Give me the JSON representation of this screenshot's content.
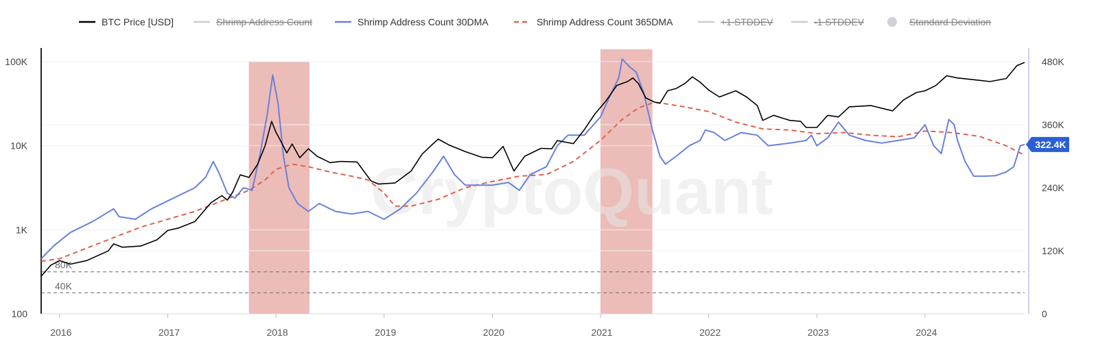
{
  "chart_data": {
    "type": "line",
    "watermark": "CryptoQuant",
    "legend": [
      {
        "id": "btc",
        "label": "BTC Price [USD]",
        "color": "#000000",
        "style": "solid",
        "disabled": false
      },
      {
        "id": "shrimp",
        "label": "Shrimp Address Count",
        "color": "#cccccc",
        "style": "solid",
        "disabled": true
      },
      {
        "id": "dma30",
        "label": "Shrimp Address Count 30DMA",
        "color": "#6a7fdc",
        "style": "solid",
        "disabled": false
      },
      {
        "id": "dma365",
        "label": "Shrimp Address Count 365DMA",
        "color": "#e0604c",
        "style": "dashed",
        "disabled": false
      },
      {
        "id": "plus1",
        "label": "+1 STDDEV",
        "color": "#cccccc",
        "style": "solid",
        "disabled": true
      },
      {
        "id": "minus1",
        "label": "-1 STDDEV",
        "color": "#cccccc",
        "style": "solid",
        "disabled": true
      },
      {
        "id": "sd",
        "label": "Standard Deviation",
        "color": "#cccccc",
        "style": "dot",
        "disabled": true
      }
    ],
    "x_axis": {
      "range": [
        2015.83,
        2024.92
      ],
      "ticks": [
        {
          "v": 2016,
          "label": "2016"
        },
        {
          "v": 2017,
          "label": "2017"
        },
        {
          "v": 2018,
          "label": "2018"
        },
        {
          "v": 2019,
          "label": "2019"
        },
        {
          "v": 2020,
          "label": "2020"
        },
        {
          "v": 2021,
          "label": "2021"
        },
        {
          "v": 2022,
          "label": "2022"
        },
        {
          "v": 2023,
          "label": "2023"
        },
        {
          "v": 2024,
          "label": "2024"
        }
      ]
    },
    "y_left": {
      "scale": "log",
      "range": [
        100,
        100000
      ],
      "ticks": [
        {
          "v": 100,
          "label": "100"
        },
        {
          "v": 1000,
          "label": "1K"
        },
        {
          "v": 10000,
          "label": "10K"
        },
        {
          "v": 100000,
          "label": "100K"
        }
      ]
    },
    "y_right": {
      "scale": "linear",
      "range": [
        0,
        480000
      ],
      "ticks": [
        {
          "v": 0,
          "label": "0"
        },
        {
          "v": 120000,
          "label": "120K"
        },
        {
          "v": 240000,
          "label": "240K"
        },
        {
          "v": 360000,
          "label": "360K"
        },
        {
          "v": 480000,
          "label": "480K"
        }
      ]
    },
    "current_value_badge": {
      "value": 322400,
      "label": "322.4K",
      "color": "#2a5fd4"
    },
    "reference_lines": [
      {
        "value": 80000,
        "label": "80K"
      },
      {
        "value": 40000,
        "label": "40K"
      }
    ],
    "highlight_periods": [
      {
        "start": 2017.75,
        "end": 2018.31
      },
      {
        "start": 2021.0,
        "end": 2021.48
      }
    ],
    "series": [
      {
        "name": "BTC Price [USD]",
        "axis": "left",
        "points": [
          [
            2015.83,
            280
          ],
          [
            2015.92,
            380
          ],
          [
            2016.0,
            430
          ],
          [
            2016.1,
            390
          ],
          [
            2016.25,
            430
          ],
          [
            2016.45,
            560
          ],
          [
            2016.5,
            680
          ],
          [
            2016.58,
            620
          ],
          [
            2016.75,
            640
          ],
          [
            2016.9,
            760
          ],
          [
            2017.0,
            980
          ],
          [
            2017.1,
            1050
          ],
          [
            2017.25,
            1250
          ],
          [
            2017.4,
            2100
          ],
          [
            2017.5,
            2550
          ],
          [
            2017.55,
            2250
          ],
          [
            2017.6,
            2800
          ],
          [
            2017.67,
            4500
          ],
          [
            2017.75,
            4200
          ],
          [
            2017.83,
            6000
          ],
          [
            2017.9,
            10000
          ],
          [
            2017.96,
            19500
          ],
          [
            2018.0,
            14500
          ],
          [
            2018.05,
            11000
          ],
          [
            2018.1,
            8200
          ],
          [
            2018.15,
            10500
          ],
          [
            2018.22,
            7200
          ],
          [
            2018.3,
            9200
          ],
          [
            2018.38,
            7500
          ],
          [
            2018.5,
            6300
          ],
          [
            2018.6,
            6500
          ],
          [
            2018.75,
            6400
          ],
          [
            2018.88,
            3800
          ],
          [
            2018.95,
            3500
          ],
          [
            2019.1,
            3600
          ],
          [
            2019.25,
            5000
          ],
          [
            2019.35,
            7900
          ],
          [
            2019.45,
            10500
          ],
          [
            2019.5,
            12000
          ],
          [
            2019.6,
            10200
          ],
          [
            2019.75,
            8500
          ],
          [
            2019.9,
            7300
          ],
          [
            2020.0,
            7200
          ],
          [
            2020.1,
            9800
          ],
          [
            2020.2,
            5000
          ],
          [
            2020.3,
            7500
          ],
          [
            2020.45,
            9300
          ],
          [
            2020.55,
            9200
          ],
          [
            2020.6,
            11500
          ],
          [
            2020.75,
            10600
          ],
          [
            2020.85,
            15500
          ],
          [
            2020.95,
            24000
          ],
          [
            2021.05,
            34000
          ],
          [
            2021.15,
            52000
          ],
          [
            2021.25,
            58000
          ],
          [
            2021.3,
            64000
          ],
          [
            2021.35,
            55000
          ],
          [
            2021.42,
            37000
          ],
          [
            2021.5,
            33000
          ],
          [
            2021.55,
            32000
          ],
          [
            2021.62,
            45000
          ],
          [
            2021.7,
            48000
          ],
          [
            2021.78,
            55000
          ],
          [
            2021.85,
            66000
          ],
          [
            2021.92,
            57000
          ],
          [
            2022.0,
            46000
          ],
          [
            2022.1,
            38000
          ],
          [
            2022.25,
            45000
          ],
          [
            2022.35,
            38000
          ],
          [
            2022.45,
            30000
          ],
          [
            2022.5,
            20000
          ],
          [
            2022.6,
            23000
          ],
          [
            2022.75,
            20000
          ],
          [
            2022.85,
            19500
          ],
          [
            2022.9,
            16500
          ],
          [
            2023.0,
            16500
          ],
          [
            2023.1,
            23000
          ],
          [
            2023.2,
            22000
          ],
          [
            2023.3,
            29000
          ],
          [
            2023.5,
            30000
          ],
          [
            2023.7,
            26000
          ],
          [
            2023.8,
            35000
          ],
          [
            2023.92,
            43000
          ],
          [
            2024.0,
            45000
          ],
          [
            2024.1,
            52000
          ],
          [
            2024.2,
            68000
          ],
          [
            2024.3,
            64000
          ],
          [
            2024.5,
            60000
          ],
          [
            2024.6,
            58000
          ],
          [
            2024.75,
            63000
          ],
          [
            2024.85,
            90000
          ],
          [
            2024.92,
            98000
          ]
        ]
      },
      {
        "name": "Shrimp Address Count 30DMA",
        "axis": "right",
        "points": [
          [
            2015.83,
            105000
          ],
          [
            2015.95,
            130000
          ],
          [
            2016.1,
            155000
          ],
          [
            2016.3,
            175000
          ],
          [
            2016.5,
            200000
          ],
          [
            2016.55,
            185000
          ],
          [
            2016.7,
            180000
          ],
          [
            2016.85,
            200000
          ],
          [
            2017.0,
            215000
          ],
          [
            2017.15,
            230000
          ],
          [
            2017.25,
            240000
          ],
          [
            2017.35,
            260000
          ],
          [
            2017.42,
            290000
          ],
          [
            2017.47,
            270000
          ],
          [
            2017.55,
            230000
          ],
          [
            2017.62,
            220000
          ],
          [
            2017.7,
            240000
          ],
          [
            2017.78,
            235000
          ],
          [
            2017.85,
            300000
          ],
          [
            2017.92,
            380000
          ],
          [
            2017.97,
            455000
          ],
          [
            2018.02,
            400000
          ],
          [
            2018.07,
            300000
          ],
          [
            2018.12,
            240000
          ],
          [
            2018.2,
            210000
          ],
          [
            2018.3,
            195000
          ],
          [
            2018.4,
            210000
          ],
          [
            2018.55,
            195000
          ],
          [
            2018.7,
            190000
          ],
          [
            2018.85,
            195000
          ],
          [
            2019.0,
            180000
          ],
          [
            2019.15,
            200000
          ],
          [
            2019.3,
            230000
          ],
          [
            2019.45,
            270000
          ],
          [
            2019.55,
            300000
          ],
          [
            2019.65,
            265000
          ],
          [
            2019.75,
            245000
          ],
          [
            2019.9,
            245000
          ],
          [
            2020.0,
            245000
          ],
          [
            2020.15,
            250000
          ],
          [
            2020.25,
            235000
          ],
          [
            2020.35,
            265000
          ],
          [
            2020.5,
            280000
          ],
          [
            2020.6,
            320000
          ],
          [
            2020.7,
            340000
          ],
          [
            2020.85,
            340000
          ],
          [
            2021.0,
            375000
          ],
          [
            2021.1,
            420000
          ],
          [
            2021.17,
            450000
          ],
          [
            2021.2,
            485000
          ],
          [
            2021.27,
            470000
          ],
          [
            2021.33,
            460000
          ],
          [
            2021.4,
            420000
          ],
          [
            2021.48,
            350000
          ],
          [
            2021.55,
            300000
          ],
          [
            2021.6,
            285000
          ],
          [
            2021.7,
            300000
          ],
          [
            2021.82,
            320000
          ],
          [
            2021.92,
            330000
          ],
          [
            2021.97,
            350000
          ],
          [
            2022.05,
            345000
          ],
          [
            2022.15,
            330000
          ],
          [
            2022.3,
            345000
          ],
          [
            2022.45,
            340000
          ],
          [
            2022.55,
            320000
          ],
          [
            2022.75,
            325000
          ],
          [
            2022.9,
            330000
          ],
          [
            2022.95,
            340000
          ],
          [
            2023.0,
            320000
          ],
          [
            2023.1,
            335000
          ],
          [
            2023.2,
            365000
          ],
          [
            2023.3,
            340000
          ],
          [
            2023.45,
            330000
          ],
          [
            2023.6,
            325000
          ],
          [
            2023.75,
            330000
          ],
          [
            2023.9,
            335000
          ],
          [
            2024.0,
            360000
          ],
          [
            2024.08,
            320000
          ],
          [
            2024.15,
            305000
          ],
          [
            2024.22,
            370000
          ],
          [
            2024.27,
            360000
          ],
          [
            2024.3,
            330000
          ],
          [
            2024.37,
            290000
          ],
          [
            2024.45,
            262000
          ],
          [
            2024.55,
            262000
          ],
          [
            2024.65,
            263000
          ],
          [
            2024.75,
            270000
          ],
          [
            2024.82,
            280000
          ],
          [
            2024.88,
            320000
          ],
          [
            2024.92,
            322400
          ]
        ]
      },
      {
        "name": "Shrimp Address Count 365DMA",
        "axis": "right",
        "points": [
          [
            2015.83,
            100000
          ],
          [
            2016.0,
            105000
          ],
          [
            2016.25,
            125000
          ],
          [
            2016.5,
            145000
          ],
          [
            2016.75,
            165000
          ],
          [
            2017.0,
            180000
          ],
          [
            2017.25,
            195000
          ],
          [
            2017.5,
            215000
          ],
          [
            2017.75,
            235000
          ],
          [
            2017.9,
            255000
          ],
          [
            2018.0,
            275000
          ],
          [
            2018.15,
            285000
          ],
          [
            2018.3,
            280000
          ],
          [
            2018.5,
            270000
          ],
          [
            2018.7,
            262000
          ],
          [
            2018.85,
            255000
          ],
          [
            2019.0,
            230000
          ],
          [
            2019.1,
            205000
          ],
          [
            2019.25,
            205000
          ],
          [
            2019.5,
            218000
          ],
          [
            2019.75,
            240000
          ],
          [
            2020.0,
            252000
          ],
          [
            2020.25,
            262000
          ],
          [
            2020.5,
            265000
          ],
          [
            2020.75,
            290000
          ],
          [
            2021.0,
            330000
          ],
          [
            2021.2,
            370000
          ],
          [
            2021.35,
            392000
          ],
          [
            2021.5,
            403000
          ],
          [
            2021.75,
            395000
          ],
          [
            2022.0,
            385000
          ],
          [
            2022.25,
            365000
          ],
          [
            2022.5,
            352000
          ],
          [
            2022.75,
            350000
          ],
          [
            2023.0,
            343000
          ],
          [
            2023.25,
            345000
          ],
          [
            2023.5,
            340000
          ],
          [
            2023.75,
            337000
          ],
          [
            2024.0,
            348000
          ],
          [
            2024.25,
            345000
          ],
          [
            2024.5,
            338000
          ],
          [
            2024.75,
            320000
          ],
          [
            2024.92,
            302000
          ]
        ]
      }
    ]
  }
}
